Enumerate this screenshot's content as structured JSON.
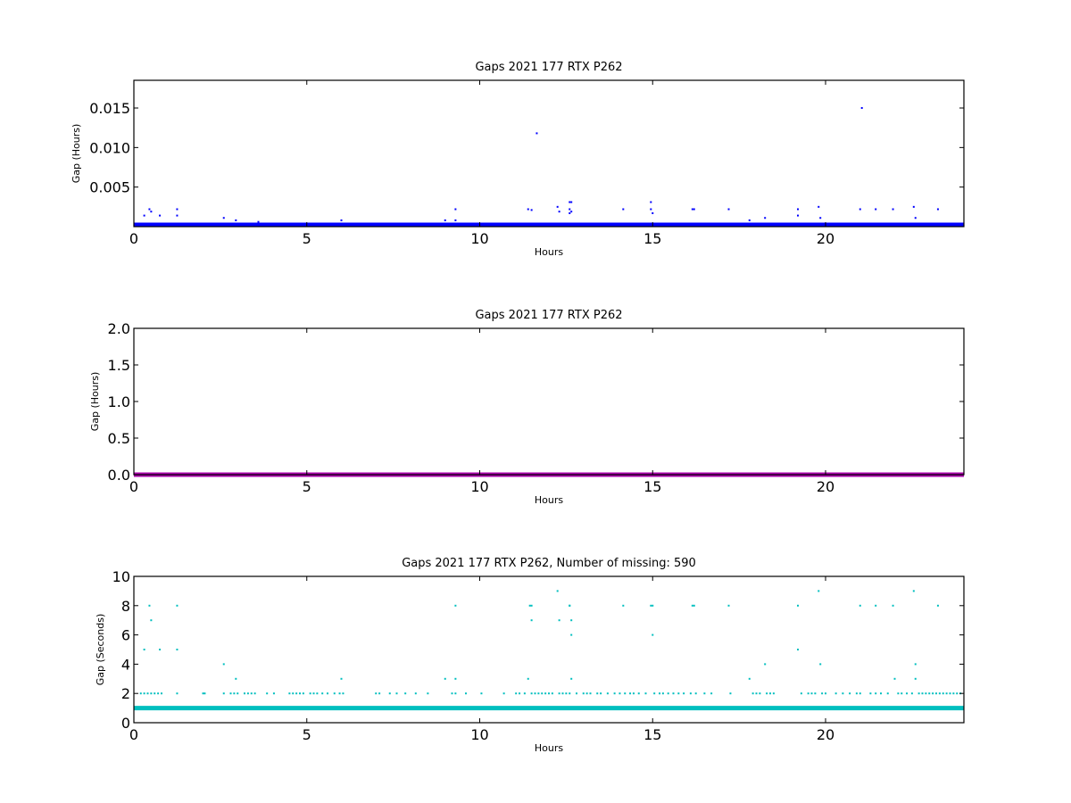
{
  "chart_data": [
    {
      "type": "scatter",
      "title": "Gaps 2021 177 RTX  P262",
      "xlabel": "Hours",
      "ylabel": "Gap (Hours)",
      "xlim": [
        0,
        24
      ],
      "ylim": [
        0,
        0.0185
      ],
      "xticks": [
        "0",
        "5",
        "10",
        "15",
        "20"
      ],
      "yticks": [
        "0.005",
        "0.010",
        "0.015"
      ],
      "ytick_values": [
        0.005,
        0.01,
        0.015
      ],
      "grid": false,
      "color": "#0000ff",
      "baseline": {
        "x_start": 0,
        "x_end": 24,
        "y": 0.00028
      },
      "series": [
        {
          "x": [
            0.3,
            0.45,
            0.5,
            0.75,
            1.25,
            1.25,
            2.6,
            2.95,
            3.6,
            6.0,
            9.0,
            9.3,
            9.3,
            11.4,
            11.5,
            11.65,
            12.25,
            12.3,
            12.6,
            12.6,
            12.6,
            12.65,
            12.65,
            14.15,
            14.95,
            14.95,
            15.0,
            16.15,
            16.2,
            17.2,
            17.8,
            18.25,
            19.2,
            19.2,
            19.8,
            19.85,
            21.0,
            21.05,
            21.45,
            21.95,
            22.55,
            22.6,
            23.25
          ],
          "y": [
            0.0014,
            0.0022,
            0.0019,
            0.0014,
            0.0022,
            0.0014,
            0.0011,
            0.0008,
            0.0006,
            0.0008,
            0.0008,
            0.0022,
            0.0008,
            0.0022,
            0.0021,
            0.0118,
            0.0025,
            0.0019,
            0.0031,
            0.0022,
            0.0017,
            0.0031,
            0.0019,
            0.0022,
            0.0031,
            0.0022,
            0.0017,
            0.0022,
            0.0022,
            0.0022,
            0.0008,
            0.0011,
            0.0022,
            0.0014,
            0.0025,
            0.0011,
            0.0022,
            0.015,
            0.0022,
            0.0022,
            0.0025,
            0.0011,
            0.0022
          ]
        }
      ]
    },
    {
      "type": "scatter",
      "title": "Gaps 2021 177 RTX  P262",
      "xlabel": "Hours",
      "ylabel": "Gap (Hours)",
      "xlim": [
        0,
        24
      ],
      "ylim": [
        0,
        2.0
      ],
      "xticks": [
        "0",
        "5",
        "10",
        "15",
        "20"
      ],
      "yticks": [
        "0.0",
        "0.5",
        "1.0",
        "1.5",
        "2.0"
      ],
      "ytick_values": [
        0,
        0.5,
        1.0,
        1.5,
        2.0
      ],
      "grid": false,
      "color": "#aa00aa",
      "baseline": {
        "x_start": 0,
        "x_end": 24,
        "y": 0.0
      },
      "series": [
        {
          "x": [],
          "y": []
        }
      ]
    },
    {
      "type": "scatter",
      "title": "Gaps 2021 177 RTX  P262, Number of missing: 590",
      "xlabel": "Hours",
      "ylabel": "Gap (Seconds)",
      "xlim": [
        0,
        24
      ],
      "ylim": [
        0,
        10
      ],
      "xticks": [
        "0",
        "5",
        "10",
        "15",
        "20"
      ],
      "yticks": [
        "0",
        "2",
        "4",
        "6",
        "8",
        "10"
      ],
      "ytick_values": [
        0,
        2,
        4,
        6,
        8,
        10
      ],
      "grid": false,
      "color": "#00bfbf",
      "baseline": {
        "x_start": 0,
        "x_end": 24,
        "y": 1
      },
      "series": [
        {
          "x": [
            0.3,
            0.45,
            0.5,
            0.75,
            1.25,
            1.25,
            2.6,
            2.95,
            6.0,
            9.0,
            9.3,
            9.3,
            11.4,
            11.45,
            11.5,
            11.5,
            12.25,
            12.3,
            12.6,
            12.6,
            12.65,
            12.65,
            12.65,
            14.15,
            14.95,
            15.0,
            15.0,
            16.15,
            16.2,
            17.2,
            17.8,
            18.25,
            19.2,
            19.2,
            19.8,
            19.85,
            21.0,
            21.45,
            21.95,
            22.0,
            22.55,
            22.6,
            22.6,
            23.25
          ],
          "y": [
            5,
            8,
            7,
            5,
            8,
            5,
            4,
            3,
            3,
            3,
            8,
            3,
            3,
            8,
            8,
            7,
            9,
            7,
            8,
            8,
            7,
            6,
            3,
            8,
            8,
            8,
            6,
            8,
            8,
            8,
            3,
            4,
            8,
            5,
            9,
            4,
            8,
            8,
            8,
            3,
            9,
            4,
            3,
            8
          ]
        },
        {
          "x": [
            0.2,
            0.3,
            0.4,
            0.5,
            0.6,
            0.7,
            0.8,
            1.25,
            2.0,
            2.05,
            2.6,
            2.8,
            2.9,
            3.0,
            3.2,
            3.3,
            3.4,
            3.5,
            3.85,
            4.05,
            4.5,
            4.6,
            4.7,
            4.8,
            4.9,
            5.1,
            5.2,
            5.3,
            5.45,
            5.6,
            5.8,
            5.95,
            6.05,
            7.0,
            7.1,
            7.4,
            7.6,
            7.85,
            8.15,
            8.5,
            9.2,
            9.3,
            9.6,
            10.05,
            10.7,
            11.05,
            11.15,
            11.3,
            11.5,
            11.6,
            11.7,
            11.8,
            11.9,
            12.0,
            12.1,
            12.3,
            12.4,
            12.5,
            12.6,
            12.8,
            13.0,
            13.1,
            13.2,
            13.4,
            13.5,
            13.7,
            13.9,
            14.05,
            14.2,
            14.35,
            14.45,
            14.6,
            14.8,
            15.05,
            15.2,
            15.3,
            15.45,
            15.6,
            15.75,
            15.9,
            16.1,
            16.25,
            16.5,
            16.7,
            17.25,
            17.9,
            18.0,
            18.1,
            18.3,
            18.4,
            18.5,
            19.3,
            19.5,
            19.6,
            19.7,
            19.9,
            20.0,
            20.3,
            20.5,
            20.7,
            20.9,
            21.0,
            21.3,
            21.45,
            21.6,
            21.8,
            22.1,
            22.2,
            22.35,
            22.5,
            22.7,
            22.8,
            22.9,
            23.0,
            23.1,
            23.2,
            23.3,
            23.4,
            23.5,
            23.6,
            23.7,
            23.8,
            23.9
          ],
          "y": [
            2,
            2,
            2,
            2,
            2,
            2,
            2,
            2,
            2,
            2,
            2,
            2,
            2,
            2,
            2,
            2,
            2,
            2,
            2,
            2,
            2,
            2,
            2,
            2,
            2,
            2,
            2,
            2,
            2,
            2,
            2,
            2,
            2,
            2,
            2,
            2,
            2,
            2,
            2,
            2,
            2,
            2,
            2,
            2,
            2,
            2,
            2,
            2,
            2,
            2,
            2,
            2,
            2,
            2,
            2,
            2,
            2,
            2,
            2,
            2,
            2,
            2,
            2,
            2,
            2,
            2,
            2,
            2,
            2,
            2,
            2,
            2,
            2,
            2,
            2,
            2,
            2,
            2,
            2,
            2,
            2,
            2,
            2,
            2,
            2,
            2,
            2,
            2,
            2,
            2,
            2,
            2,
            2,
            2,
            2,
            2,
            2,
            2,
            2,
            2,
            2,
            2,
            2,
            2,
            2,
            2,
            2,
            2,
            2,
            2,
            2,
            2,
            2,
            2,
            2,
            2,
            2,
            2,
            2,
            2,
            2,
            2,
            2
          ]
        }
      ]
    }
  ]
}
